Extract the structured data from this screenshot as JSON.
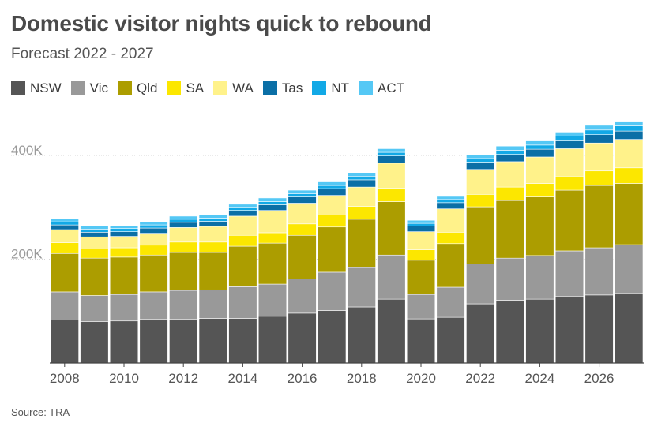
{
  "chart_data": {
    "type": "bar",
    "stacked": true,
    "title": "Domestic visitor nights quick to rebound",
    "subtitle": "Forecast 2022 - 2027",
    "source": "Source: TRA",
    "xlabel": "",
    "ylabel": "",
    "ylim": [
      0,
      470000
    ],
    "y_ticks": [
      {
        "value": 200000,
        "label": "200K"
      },
      {
        "value": 400000,
        "label": "400K"
      }
    ],
    "x_tick_labels": [
      "2008",
      "2010",
      "2012",
      "2014",
      "2016",
      "2018",
      "2020",
      "2022",
      "2024",
      "2026"
    ],
    "grid": true,
    "legend_position": "top-left",
    "categories": [
      "2008",
      "2009",
      "2010",
      "2011",
      "2012",
      "2013",
      "2014",
      "2015",
      "2016",
      "2017",
      "2018",
      "2019",
      "2020",
      "2021",
      "2022",
      "2023",
      "2024",
      "2025",
      "2026",
      "2027"
    ],
    "series": [
      {
        "name": "NSW",
        "color": "#555555",
        "values": [
          83000,
          80000,
          81000,
          84000,
          84000,
          86000,
          86000,
          90000,
          96000,
          101000,
          108000,
          123000,
          85000,
          88000,
          114000,
          121000,
          123000,
          128000,
          131000,
          134000
        ]
      },
      {
        "name": "Vic",
        "color": "#999999",
        "values": [
          54000,
          50000,
          51000,
          53000,
          56000,
          55000,
          61000,
          62000,
          66000,
          74000,
          76000,
          85000,
          47000,
          58000,
          77000,
          81000,
          84000,
          88000,
          91000,
          94000
        ]
      },
      {
        "name": "Qld",
        "color": "#ac9d00",
        "values": [
          74000,
          72000,
          72000,
          71000,
          73000,
          72000,
          78000,
          79000,
          84000,
          87000,
          93000,
          103000,
          66000,
          84000,
          110000,
          111000,
          113000,
          117000,
          120000,
          118000
        ]
      },
      {
        "name": "SA",
        "color": "#fce700",
        "values": [
          21000,
          18000,
          18000,
          19000,
          20000,
          20000,
          21000,
          20000,
          22000,
          23000,
          25000,
          26000,
          20000,
          22000,
          24000,
          26000,
          26000,
          27000,
          28000,
          30000
        ]
      },
      {
        "name": "WA",
        "color": "#fff28a",
        "values": [
          25000,
          23000,
          22000,
          23000,
          28000,
          30000,
          37000,
          43000,
          40000,
          38000,
          37000,
          48000,
          35000,
          45000,
          48000,
          49000,
          51000,
          53000,
          54000,
          55000
        ]
      },
      {
        "name": "Tas",
        "color": "#0b6fa6",
        "values": [
          9000,
          9000,
          9000,
          10000,
          10000,
          10000,
          11000,
          11000,
          12000,
          13000,
          14000,
          14000,
          11000,
          12000,
          14000,
          14000,
          15000,
          15000,
          16000,
          16000
        ]
      },
      {
        "name": "NT",
        "color": "#12a9e6",
        "values": [
          6000,
          6000,
          6000,
          6000,
          6000,
          6000,
          6000,
          6000,
          6000,
          6000,
          7000,
          7000,
          5000,
          6000,
          7000,
          8000,
          8000,
          9000,
          9000,
          10000
        ]
      },
      {
        "name": "ACT",
        "color": "#55c8f5",
        "values": [
          6000,
          6000,
          6000,
          6000,
          6000,
          6000,
          6000,
          7000,
          7000,
          7000,
          7000,
          7000,
          6000,
          6000,
          7000,
          8000,
          8000,
          8000,
          9000,
          9000
        ]
      }
    ]
  }
}
